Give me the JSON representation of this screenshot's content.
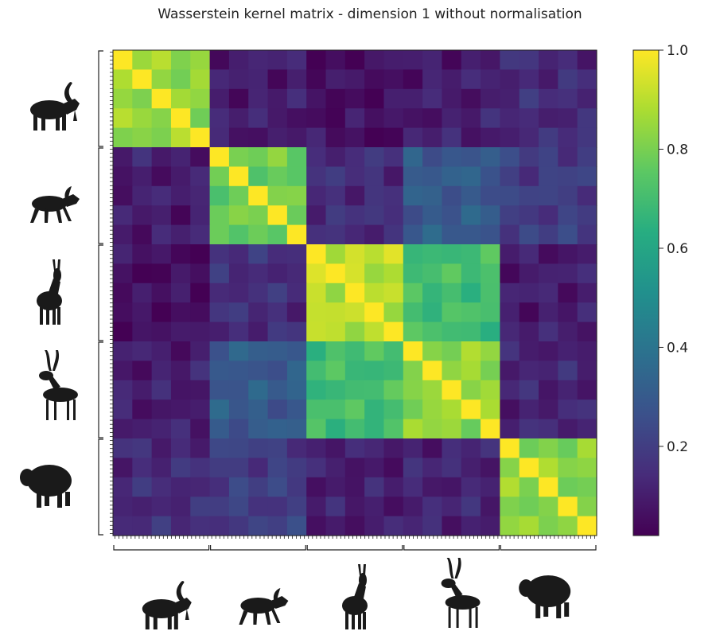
{
  "chart_data": {
    "type": "heatmap",
    "title": "Wasserstein kernel matrix - dimension 1 without normalisation",
    "xlabel": "",
    "ylabel": "",
    "colormap": "viridis",
    "groups": [
      {
        "species": "ibex",
        "icon": "ibex-icon"
      },
      {
        "species": "goat",
        "icon": "goat-icon"
      },
      {
        "species": "chamois",
        "icon": "chamois-icon"
      },
      {
        "species": "antelope",
        "icon": "antelope-icon"
      },
      {
        "species": "sheep",
        "icon": "sheep-icon"
      }
    ],
    "block_similarity": [
      [
        0.84,
        0.1,
        0.06,
        0.1,
        0.14
      ],
      [
        0.1,
        0.78,
        0.15,
        0.3,
        0.2
      ],
      [
        0.06,
        0.15,
        0.9,
        0.7,
        0.1
      ],
      [
        0.1,
        0.3,
        0.7,
        0.84,
        0.12
      ],
      [
        0.14,
        0.2,
        0.1,
        0.12,
        0.82
      ]
    ],
    "colorbar": {
      "min": 0.02,
      "max": 1.0,
      "ticks": [
        "0.2",
        "0.4",
        "0.6",
        "0.8",
        "1.0"
      ]
    }
  }
}
